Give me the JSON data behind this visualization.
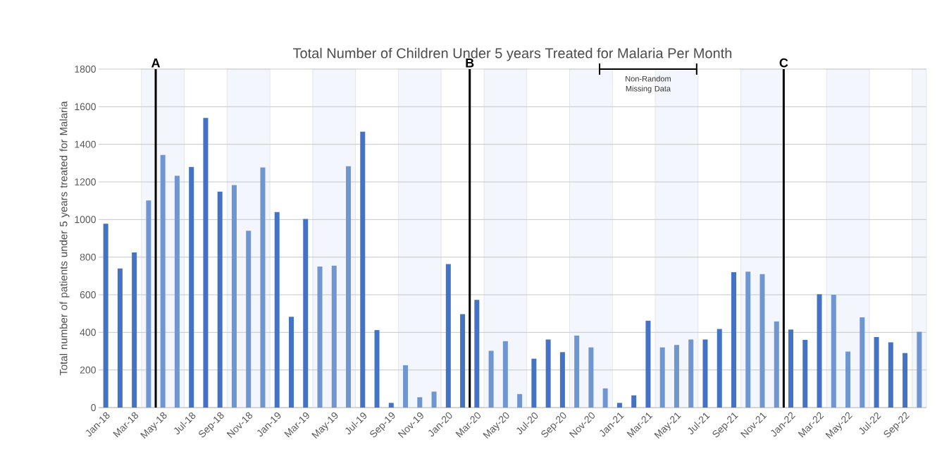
{
  "chart_data": {
    "type": "bar",
    "title": "Total Number of Children Under 5 years Treated for Malaria Per Month",
    "ylabel": "Total number of patients under 5 years treated for Malaria",
    "categories": [
      "Jan-18",
      null,
      "Mar-18",
      null,
      "May-18",
      null,
      "Jul-18",
      null,
      "Sep-18",
      null,
      "Nov-18",
      null,
      "Jan-19",
      null,
      "Mar-19",
      null,
      "May-19",
      null,
      "Jul-19",
      null,
      "Sep-19",
      null,
      "Nov-19",
      null,
      "Jan-20",
      null,
      "Mar-20",
      null,
      "May-20",
      null,
      "Jul-20",
      null,
      "Sep-20",
      null,
      "Nov-20",
      null,
      "Jan-21",
      null,
      "Mar-21",
      null,
      "May-21",
      null,
      "Jul-21",
      null,
      "Sep-21",
      null,
      "Nov-21",
      null,
      "Jan-22",
      null,
      "Mar-22",
      null,
      "May-22",
      null,
      "Jul-22",
      null,
      "Sep-22",
      null
    ],
    "values": [
      978,
      740,
      825,
      1102,
      1343,
      1233,
      1280,
      1540,
      1148,
      1183,
      940,
      1277,
      1040,
      483,
      1003,
      750,
      755,
      1283,
      1467,
      412,
      25,
      225,
      55,
      85,
      763,
      497,
      573,
      302,
      353,
      72,
      260,
      362,
      295,
      383,
      320,
      102,
      25,
      65,
      462,
      320,
      333,
      362,
      362,
      418,
      720,
      723,
      710,
      458,
      415,
      360,
      603,
      600,
      298,
      480,
      375,
      347,
      290,
      403
    ],
    "colors": [
      "#4472c4",
      "#4472c4",
      "#4472c4",
      "#7096d1",
      "#7096d1",
      "#7096d1",
      "#4472c4",
      "#4472c4",
      "#4472c4",
      "#7096d1",
      "#7096d1",
      "#7096d1",
      "#4472c4",
      "#4472c4",
      "#4472c4",
      "#7096d1",
      "#7096d1",
      "#7096d1",
      "#4472c4",
      "#4472c4",
      "#4472c4",
      "#7096d1",
      "#7096d1",
      "#7096d1",
      "#4472c4",
      "#4472c4",
      "#4472c4",
      "#7096d1",
      "#7096d1",
      "#7096d1",
      "#4472c4",
      "#4472c4",
      "#4472c4",
      "#7096d1",
      "#7096d1",
      "#7096d1",
      "#4472c4",
      "#4472c4",
      "#4472c4",
      "#7096d1",
      "#7096d1",
      "#7096d1",
      "#4472c4",
      "#4472c4",
      "#4472c4",
      "#7096d1",
      "#7096d1",
      "#7096d1",
      "#4472c4",
      "#4472c4",
      "#4472c4",
      "#7096d1",
      "#7096d1",
      "#7096d1",
      "#4472c4",
      "#4472c4",
      "#4472c4",
      "#7096d1"
    ],
    "ylim": [
      0,
      1800
    ],
    "yticks": [
      0,
      200,
      400,
      600,
      800,
      1000,
      1200,
      1400,
      1600,
      1800
    ],
    "grid": "y",
    "annotations": [
      "A",
      "B",
      "Non-Random Missing Data",
      "C"
    ]
  }
}
